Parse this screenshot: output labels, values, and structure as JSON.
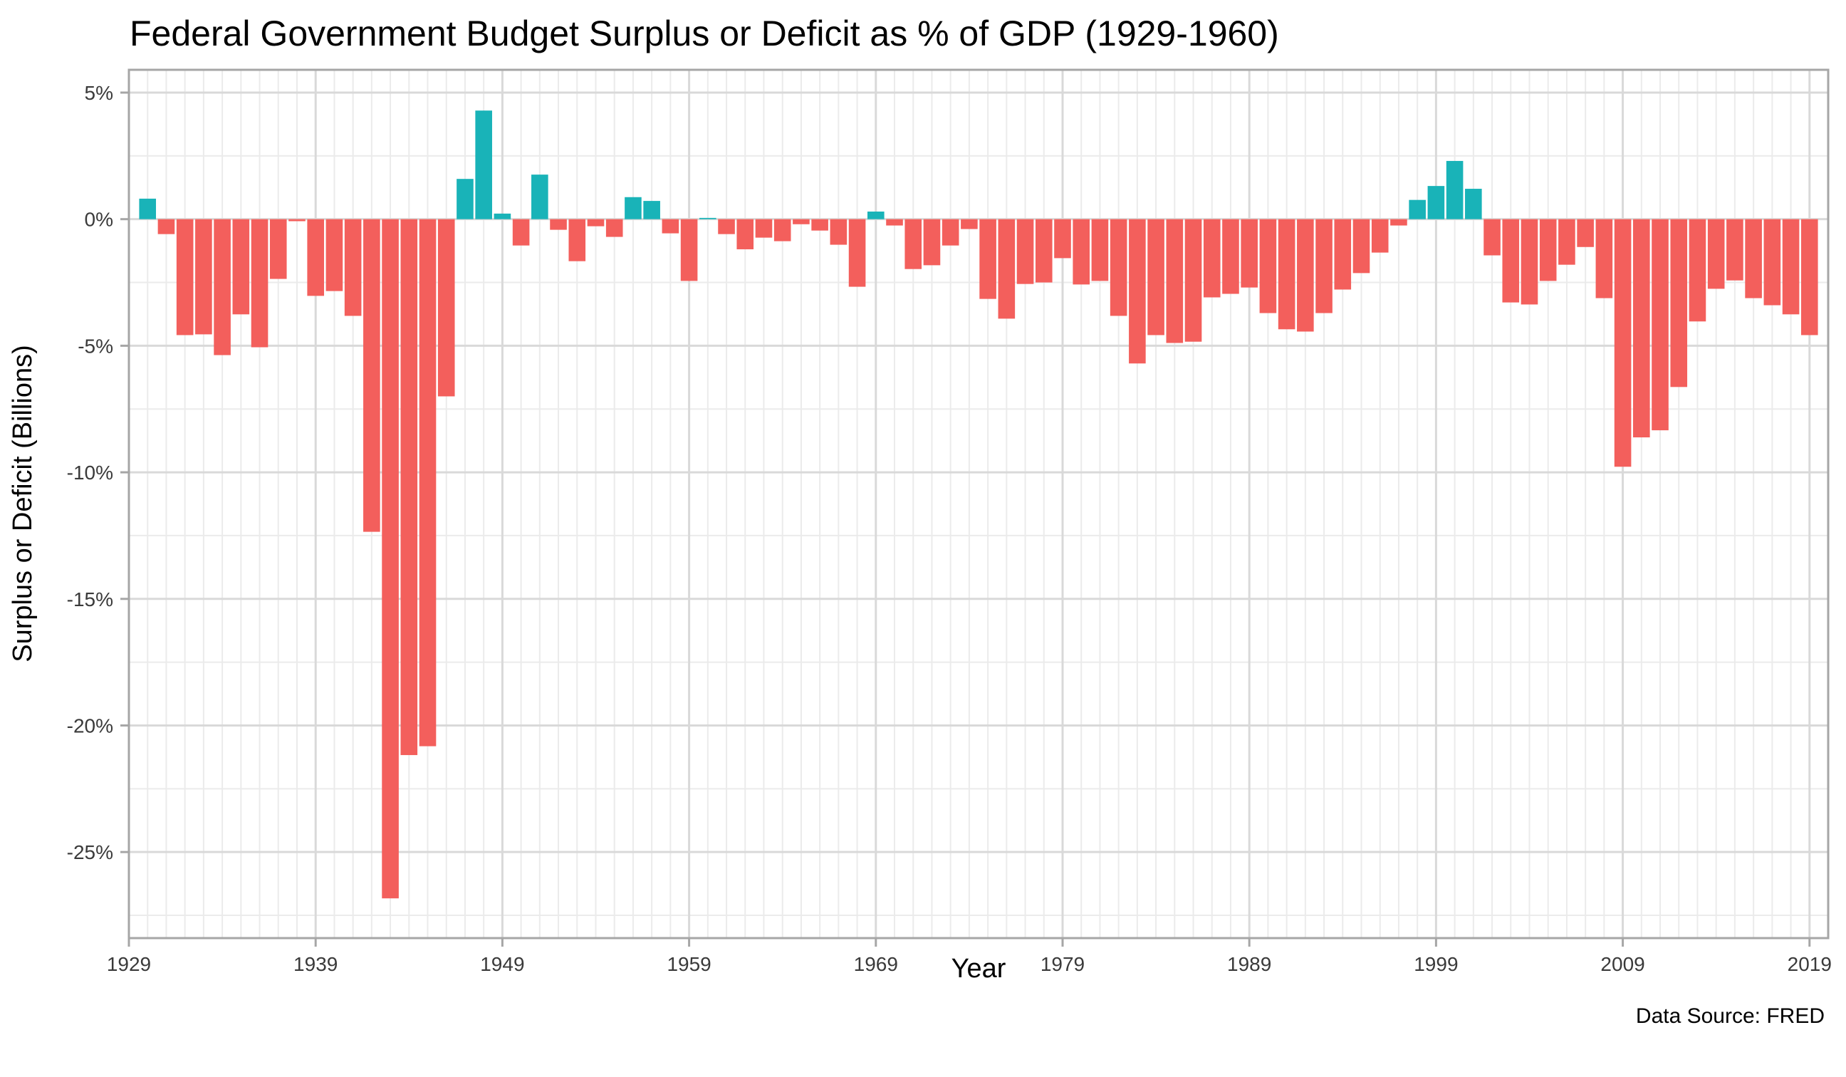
{
  "chart_data": {
    "type": "bar",
    "title": "Federal Government Budget Surplus or Deficit as % of GDP (1929-1960)",
    "xlabel": "Year",
    "ylabel": "Surplus or Deficit (Billions)",
    "caption": "Data Source: FRED",
    "xlim": [
      1929,
      2020
    ],
    "ylim": [
      -28.4,
      5.9
    ],
    "x_ticks": [
      1929,
      1939,
      1949,
      1959,
      1969,
      1979,
      1989,
      1999,
      2009,
      2019
    ],
    "x_tick_labels": [
      "1929",
      "1939",
      "1949",
      "1959",
      "1969",
      "1979",
      "1989",
      "1999",
      "2009",
      "2019"
    ],
    "y_ticks": [
      5,
      0,
      -5,
      -10,
      -15,
      -20,
      -25
    ],
    "y_tick_labels": [
      "5%",
      "0%",
      "-5%",
      "-10%",
      "-15%",
      "-20%",
      "-25%"
    ],
    "grid": true,
    "legend": "none",
    "colors": {
      "surplus": "#19B3B8",
      "deficit": "#F35F5C",
      "grid_major": "#d9d9d9",
      "grid_minor": "#ebebeb",
      "panel_border": "#a6a6a6"
    },
    "x": [
      1930,
      1931,
      1932,
      1933,
      1934,
      1935,
      1936,
      1937,
      1938,
      1939,
      1940,
      1941,
      1942,
      1943,
      1944,
      1945,
      1946,
      1947,
      1948,
      1949,
      1950,
      1951,
      1952,
      1953,
      1954,
      1955,
      1956,
      1957,
      1958,
      1959,
      1960,
      1961,
      1962,
      1963,
      1964,
      1965,
      1966,
      1967,
      1968,
      1969,
      1970,
      1971,
      1972,
      1973,
      1974,
      1975,
      1976,
      1977,
      1978,
      1979,
      1980,
      1981,
      1982,
      1983,
      1984,
      1985,
      1986,
      1987,
      1988,
      1989,
      1990,
      1991,
      1992,
      1993,
      1994,
      1995,
      1996,
      1997,
      1998,
      1999,
      2000,
      2001,
      2002,
      2003,
      2004,
      2005,
      2006,
      2007,
      2008,
      2009,
      2010,
      2011,
      2012,
      2013,
      2014,
      2015,
      2016,
      2017,
      2018,
      2019
    ],
    "values": [
      0.81,
      -0.59,
      -4.58,
      -4.55,
      -5.37,
      -3.76,
      -5.06,
      -2.36,
      -0.08,
      -3.03,
      -2.84,
      -3.82,
      -12.35,
      -26.83,
      -21.17,
      -20.82,
      -7.0,
      1.59,
      4.29,
      0.22,
      -1.04,
      1.76,
      -0.42,
      -1.66,
      -0.28,
      -0.7,
      0.87,
      0.72,
      -0.56,
      -2.44,
      0.05,
      -0.59,
      -1.19,
      -0.73,
      -0.87,
      -0.2,
      -0.45,
      -1.01,
      -2.67,
      0.3,
      -0.25,
      -1.97,
      -1.82,
      -1.04,
      -0.39,
      -3.15,
      -3.93,
      -2.56,
      -2.5,
      -1.54,
      -2.58,
      -2.44,
      -3.82,
      -5.7,
      -4.58,
      -4.89,
      -4.84,
      -3.09,
      -2.95,
      -2.7,
      -3.71,
      -4.35,
      -4.44,
      -3.71,
      -2.78,
      -2.13,
      -1.32,
      -0.25,
      0.76,
      1.31,
      2.3,
      1.2,
      -1.43,
      -3.29,
      -3.37,
      -2.44,
      -1.8,
      -1.1,
      -3.12,
      -9.78,
      -8.62,
      -8.34,
      -6.63,
      -4.04,
      -2.75,
      -2.42,
      -3.12,
      -3.4,
      -3.76,
      -4.58
    ]
  }
}
